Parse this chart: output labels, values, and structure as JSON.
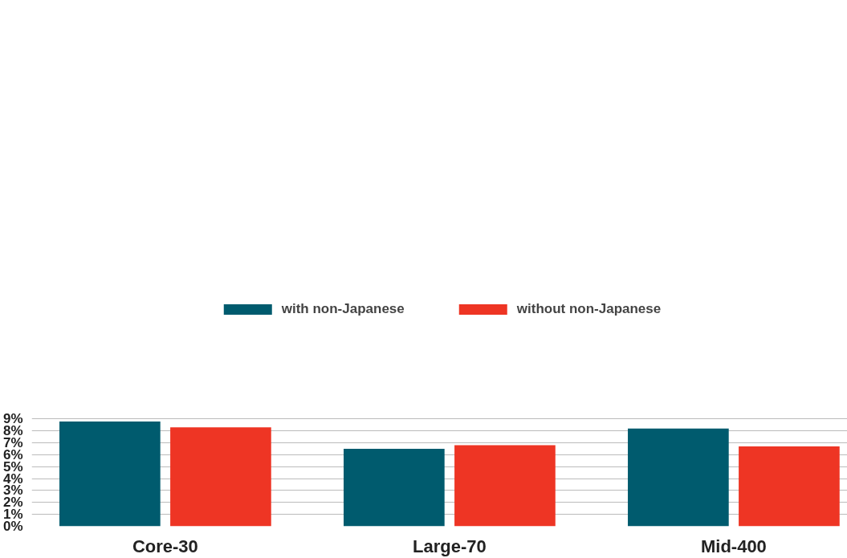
{
  "chart_data": {
    "type": "bar",
    "categories": [
      "Core-30",
      "Large-70",
      "Mid-400"
    ],
    "series": [
      {
        "name": "with non-Japanese",
        "color": "#005b6e",
        "values": [
          8.8,
          6.5,
          8.2
        ]
      },
      {
        "name": "without non-Japanese",
        "color": "#ee3524",
        "values": [
          8.3,
          6.8,
          6.7
        ]
      }
    ],
    "ylim": [
      0,
      9.1
    ],
    "yticks": [
      {
        "value": 0,
        "label": "0%"
      },
      {
        "value": 1,
        "label": "1%"
      },
      {
        "value": 2,
        "label": "2%"
      },
      {
        "value": 3,
        "label": "3%"
      },
      {
        "value": 4,
        "label": "4%"
      },
      {
        "value": 5,
        "label": "5%"
      },
      {
        "value": 6,
        "label": "6%"
      },
      {
        "value": 7,
        "label": "7%"
      },
      {
        "value": 8,
        "label": "8%"
      },
      {
        "value": 9,
        "label": "9%"
      }
    ],
    "grid": "y",
    "legend": "top"
  }
}
